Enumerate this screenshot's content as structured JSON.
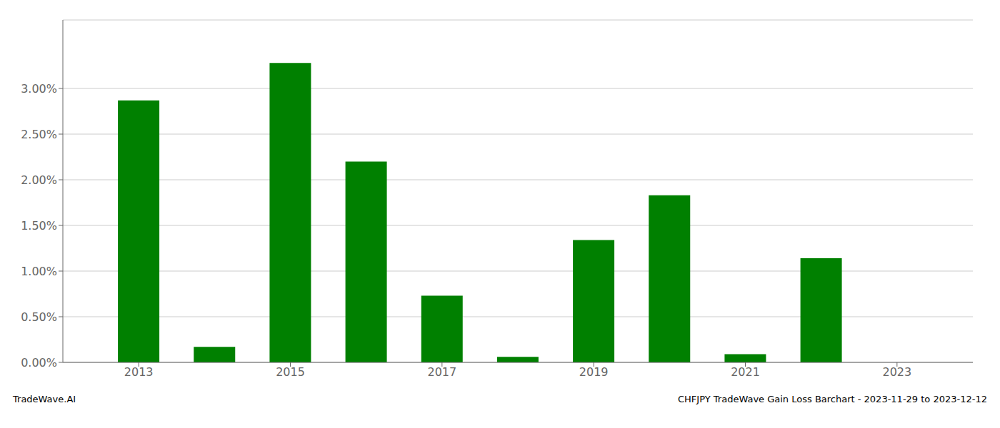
{
  "chart_data": {
    "type": "bar",
    "x": [
      2013,
      2014,
      2015,
      2016,
      2017,
      2018,
      2019,
      2020,
      2021,
      2022,
      2023
    ],
    "values": [
      0.0287,
      0.0017,
      0.0328,
      0.022,
      0.0073,
      0.0006,
      0.0134,
      0.0183,
      0.0009,
      0.0114,
      0
    ],
    "color": "#008000",
    "xlim": [
      2012,
      2024
    ],
    "xticks": [
      2013,
      2015,
      2017,
      2019,
      2021,
      2023
    ],
    "ylim": [
      0,
      0.0375
    ],
    "yticks": [
      {
        "value": 0,
        "label": "0.00%"
      },
      {
        "value": 0.005,
        "label": "0.50%"
      },
      {
        "value": 0.01,
        "label": "1.00%"
      },
      {
        "value": 0.015,
        "label": "1.50%"
      },
      {
        "value": 0.02,
        "label": "2.00%"
      },
      {
        "value": 0.025,
        "label": "2.50%"
      },
      {
        "value": 0.03,
        "label": "3.00%"
      }
    ],
    "grid": true,
    "annotations": [
      "TradeWave.AI",
      "CHFJPY TradeWave Gain Loss Barchart - 2023-11-29 to 2023-12-12"
    ]
  }
}
